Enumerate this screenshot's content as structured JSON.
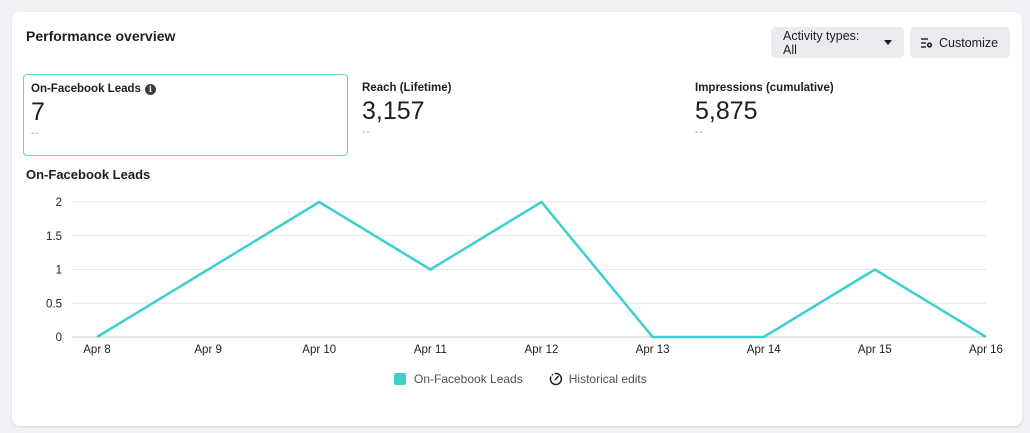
{
  "header": {
    "title": "Performance overview",
    "activity_button": "Activity types: All",
    "customize_button": "Customize"
  },
  "metrics": [
    {
      "label": "On-Facebook Leads",
      "value": "7",
      "sub": "--"
    },
    {
      "label": "Reach (Lifetime)",
      "value": "3,157",
      "sub": "--"
    },
    {
      "label": "Impressions (cumulative)",
      "value": "5,875",
      "sub": "--"
    }
  ],
  "chart_title": "On-Facebook Leads",
  "legend": {
    "series_label": "On-Facebook Leads",
    "historical_label": "Historical edits"
  },
  "colors": {
    "accent": "#3ecfcf",
    "grid": "#e4e6eb",
    "axis_text": "#1c1e21"
  },
  "chart_data": {
    "type": "line",
    "title": "On-Facebook Leads",
    "xlabel": "",
    "ylabel": "",
    "x": [
      "Apr 8",
      "Apr 9",
      "Apr 10",
      "Apr 11",
      "Apr 12",
      "Apr 13",
      "Apr 14",
      "Apr 15",
      "Apr 16"
    ],
    "series": [
      {
        "name": "On-Facebook Leads",
        "values": [
          0,
          1,
          2,
          1,
          2,
          0,
          0,
          1,
          0
        ]
      }
    ],
    "y_ticks": [
      "0",
      "0.5",
      "1",
      "1.5",
      "2"
    ],
    "ylim": [
      0,
      2
    ],
    "grid": true,
    "legend_position": "bottom"
  }
}
